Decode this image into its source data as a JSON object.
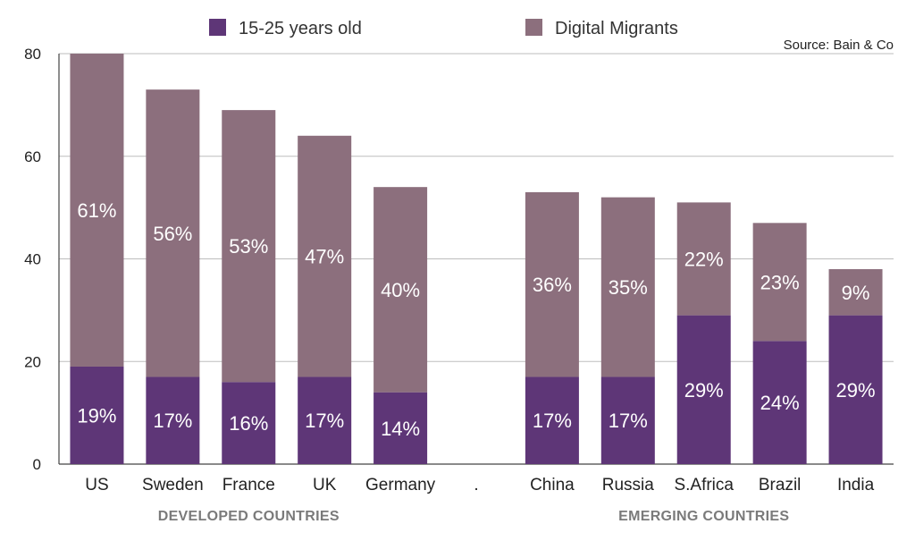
{
  "chart_data": {
    "type": "bar",
    "stacked": true,
    "source": "Source: Bain & Co",
    "categories": [
      "US",
      "Sweden",
      "France",
      "UK",
      "Germany",
      ".",
      "China",
      "Russia",
      "S.Africa",
      "Brazil",
      "India"
    ],
    "series": [
      {
        "name": "15-25 years old",
        "color": "#5e3677",
        "values": [
          19,
          17,
          16,
          17,
          14,
          null,
          17,
          17,
          29,
          24,
          29
        ],
        "labels": [
          "19%",
          "17%",
          "16%",
          "17%",
          "14%",
          "",
          "17%",
          "17%",
          "29%",
          "24%",
          "29%"
        ]
      },
      {
        "name": "Digital Migrants",
        "color": "#8c6f7d",
        "values": [
          61,
          56,
          53,
          47,
          40,
          null,
          36,
          35,
          22,
          23,
          9
        ],
        "labels": [
          "61%",
          "56%",
          "53%",
          "47%",
          "40%",
          "",
          "36%",
          "35%",
          "22%",
          "23%",
          "9%"
        ]
      }
    ],
    "ylim": [
      0,
      80
    ],
    "yticks": [
      0,
      20,
      40,
      60,
      80
    ],
    "grid": true,
    "legend_position": "top",
    "groups": [
      {
        "label": "DEVELOPED COUNTRIES",
        "categories": [
          "US",
          "Sweden",
          "France",
          "UK",
          "Germany"
        ]
      },
      {
        "label": "EMERGING COUNTRIES",
        "categories": [
          "China",
          "Russia",
          "S.Africa",
          "Brazil",
          "India"
        ]
      }
    ]
  }
}
